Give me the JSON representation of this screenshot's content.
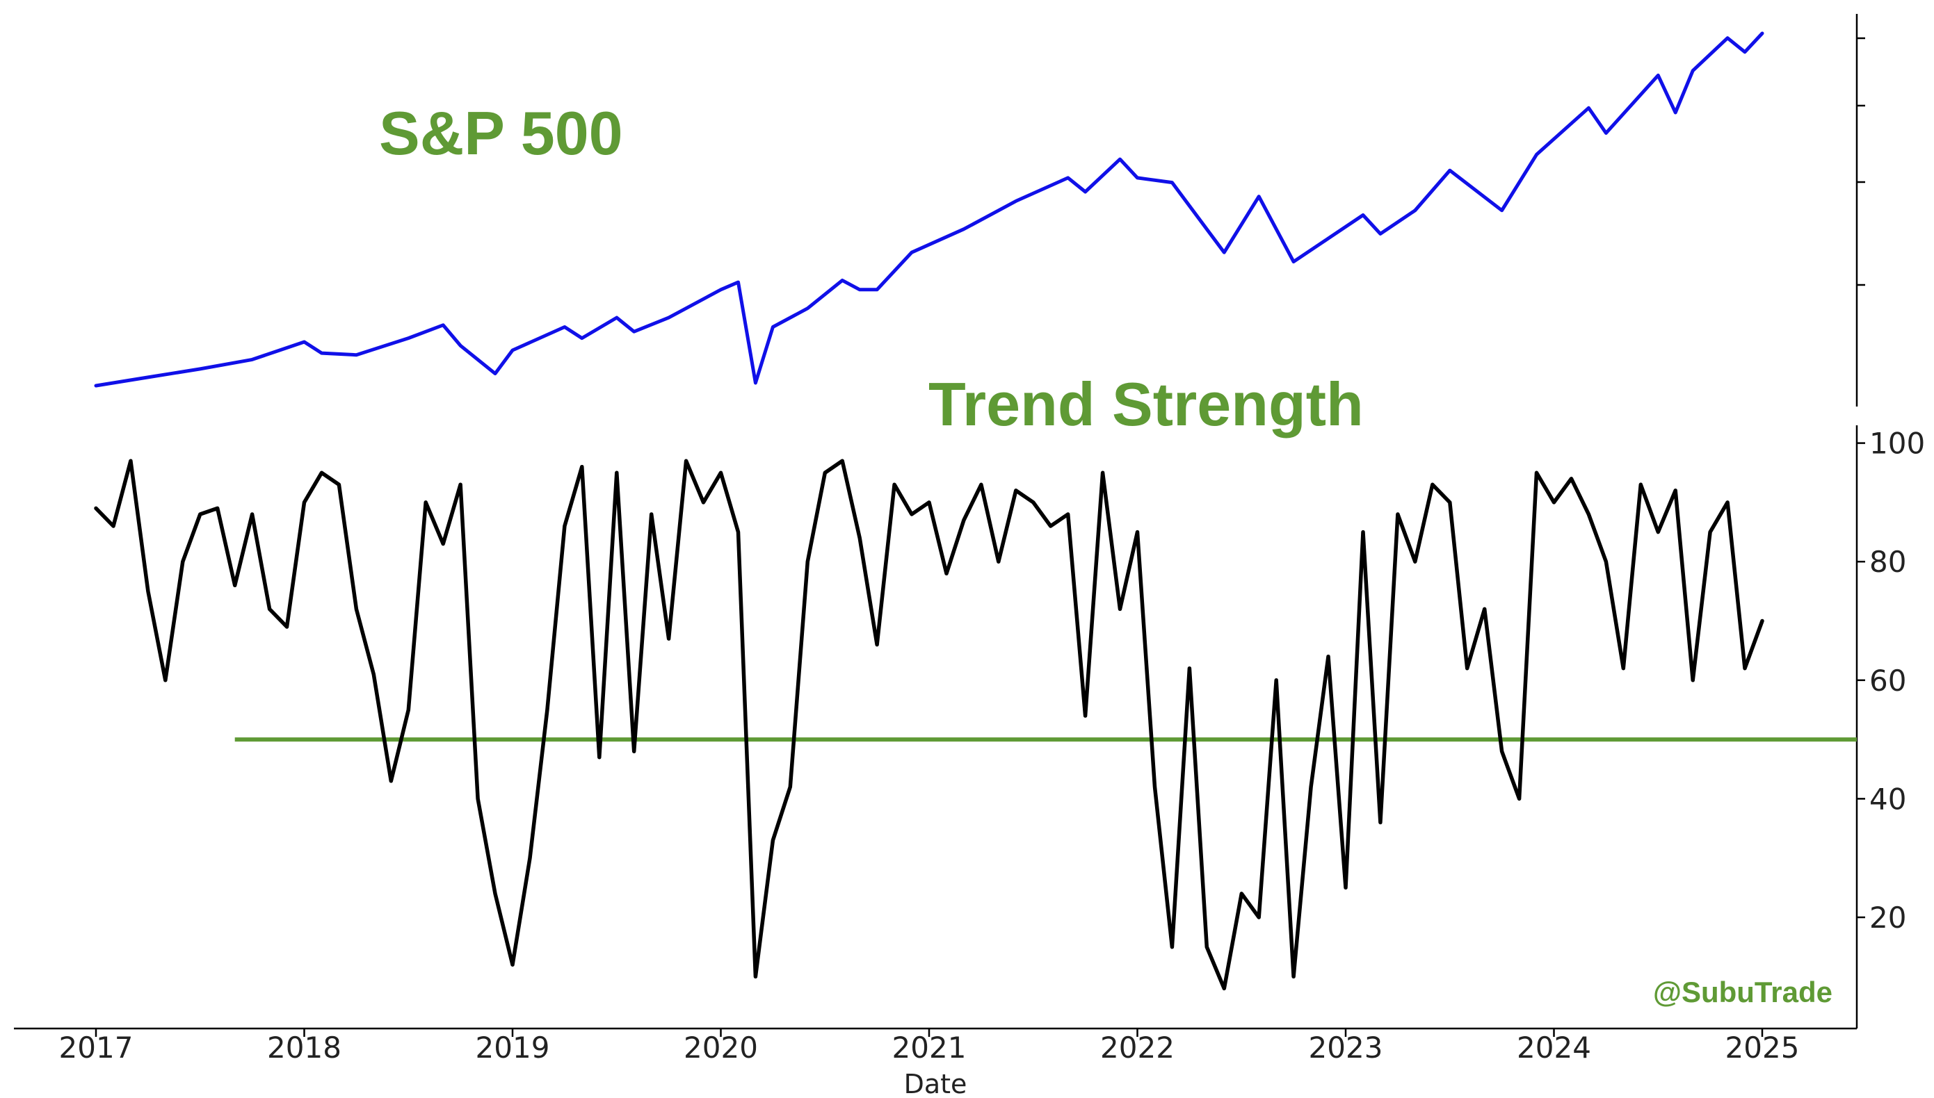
{
  "chart_data": [
    {
      "type": "line",
      "title": "S&P 500",
      "xlabel": "",
      "ylabel": "",
      "y_tick_labels_shown": false,
      "colors": {
        "line": "#1010e8",
        "title": "#5f9a35"
      },
      "series": [
        {
          "x": [
            "2017-01",
            "2017-04",
            "2017-07",
            "2017-10",
            "2018-01",
            "2018-02",
            "2018-04",
            "2018-07",
            "2018-09",
            "2018-10",
            "2018-12",
            "2019-01",
            "2019-04",
            "2019-05",
            "2019-07",
            "2019-08",
            "2019-10",
            "2020-01",
            "2020-02",
            "2020-03",
            "2020-04",
            "2020-06",
            "2020-08",
            "2020-09",
            "2020-10",
            "2020-12",
            "2021-03",
            "2021-06",
            "2021-09",
            "2021-10",
            "2021-12",
            "2022-01",
            "2022-03",
            "2022-05",
            "2022-06",
            "2022-08",
            "2022-10",
            "2022-12",
            "2023-02",
            "2023-03",
            "2023-05",
            "2023-07",
            "2023-10",
            "2023-12",
            "2024-03",
            "2024-04",
            "2024-07",
            "2024-08",
            "2024-09",
            "2024-11",
            "2024-12",
            "2025-01"
          ],
          "values": [
            2270,
            2360,
            2450,
            2550,
            2740,
            2620,
            2600,
            2780,
            2920,
            2700,
            2400,
            2650,
            2900,
            2780,
            3000,
            2850,
            3000,
            3300,
            3380,
            2300,
            2900,
            3100,
            3400,
            3300,
            3300,
            3700,
            3950,
            4250,
            4500,
            4350,
            4700,
            4500,
            4450,
            3950,
            3700,
            4300,
            3600,
            3850,
            4100,
            3900,
            4150,
            4580,
            4150,
            4750,
            5250,
            4980,
            5600,
            5200,
            5650,
            6000,
            5850,
            6050
          ]
        }
      ]
    },
    {
      "type": "line",
      "title": "Trend Strength",
      "xlabel": "Date",
      "ylabel": "",
      "ylim": [
        5,
        100
      ],
      "y_ticks": [
        "20",
        "40",
        "60",
        "80",
        "100"
      ],
      "x_ticks": [
        "2017",
        "2018",
        "2019",
        "2020",
        "2021",
        "2022",
        "2023",
        "2024",
        "2025"
      ],
      "reference_line": {
        "y": 50,
        "x_start": "2017-09",
        "color": "#5f9a35"
      },
      "colors": {
        "line": "#000000",
        "title": "#5f9a35"
      },
      "series": [
        {
          "x": [
            "2017-01",
            "2017-02",
            "2017-03",
            "2017-04",
            "2017-05",
            "2017-06",
            "2017-07",
            "2017-08",
            "2017-09",
            "2017-10",
            "2017-11",
            "2017-12",
            "2018-01",
            "2018-02",
            "2018-03",
            "2018-04",
            "2018-05",
            "2018-06",
            "2018-07",
            "2018-08",
            "2018-09",
            "2018-10",
            "2018-11",
            "2018-12",
            "2019-01",
            "2019-02",
            "2019-03",
            "2019-04",
            "2019-05",
            "2019-06",
            "2019-07",
            "2019-08",
            "2019-09",
            "2019-10",
            "2019-11",
            "2019-12",
            "2020-01",
            "2020-02",
            "2020-03",
            "2020-04",
            "2020-05",
            "2020-06",
            "2020-07",
            "2020-08",
            "2020-09",
            "2020-10",
            "2020-11",
            "2020-12",
            "2021-01",
            "2021-02",
            "2021-03",
            "2021-04",
            "2021-05",
            "2021-06",
            "2021-07",
            "2021-08",
            "2021-09",
            "2021-10",
            "2021-11",
            "2021-12",
            "2022-01",
            "2022-02",
            "2022-03",
            "2022-04",
            "2022-05",
            "2022-06",
            "2022-07",
            "2022-08",
            "2022-09",
            "2022-10",
            "2022-11",
            "2022-12",
            "2023-01",
            "2023-02",
            "2023-03",
            "2023-04",
            "2023-05",
            "2023-06",
            "2023-07",
            "2023-08",
            "2023-09",
            "2023-10",
            "2023-11",
            "2023-12",
            "2024-01",
            "2024-02",
            "2024-03",
            "2024-04",
            "2024-05",
            "2024-06",
            "2024-07",
            "2024-08",
            "2024-09",
            "2024-10",
            "2024-11",
            "2024-12",
            "2025-01"
          ],
          "values": [
            89,
            86,
            97,
            75,
            60,
            80,
            88,
            89,
            76,
            88,
            72,
            69,
            90,
            95,
            93,
            72,
            61,
            43,
            55,
            90,
            83,
            93,
            40,
            24,
            12,
            30,
            55,
            86,
            96,
            47,
            95,
            48,
            88,
            67,
            97,
            90,
            95,
            85,
            10,
            33,
            42,
            80,
            95,
            97,
            84,
            66,
            93,
            88,
            90,
            78,
            87,
            93,
            80,
            92,
            90,
            86,
            88,
            54,
            95,
            72,
            85,
            42,
            15,
            62,
            15,
            8,
            24,
            20,
            60,
            10,
            42,
            64,
            25,
            85,
            36,
            88,
            80,
            93,
            90,
            62,
            72,
            48,
            40,
            95,
            90,
            94,
            88,
            80,
            62,
            93,
            85,
            92,
            60,
            85,
            90,
            62,
            70
          ]
        }
      ]
    }
  ],
  "watermark": "@SubuTrade"
}
